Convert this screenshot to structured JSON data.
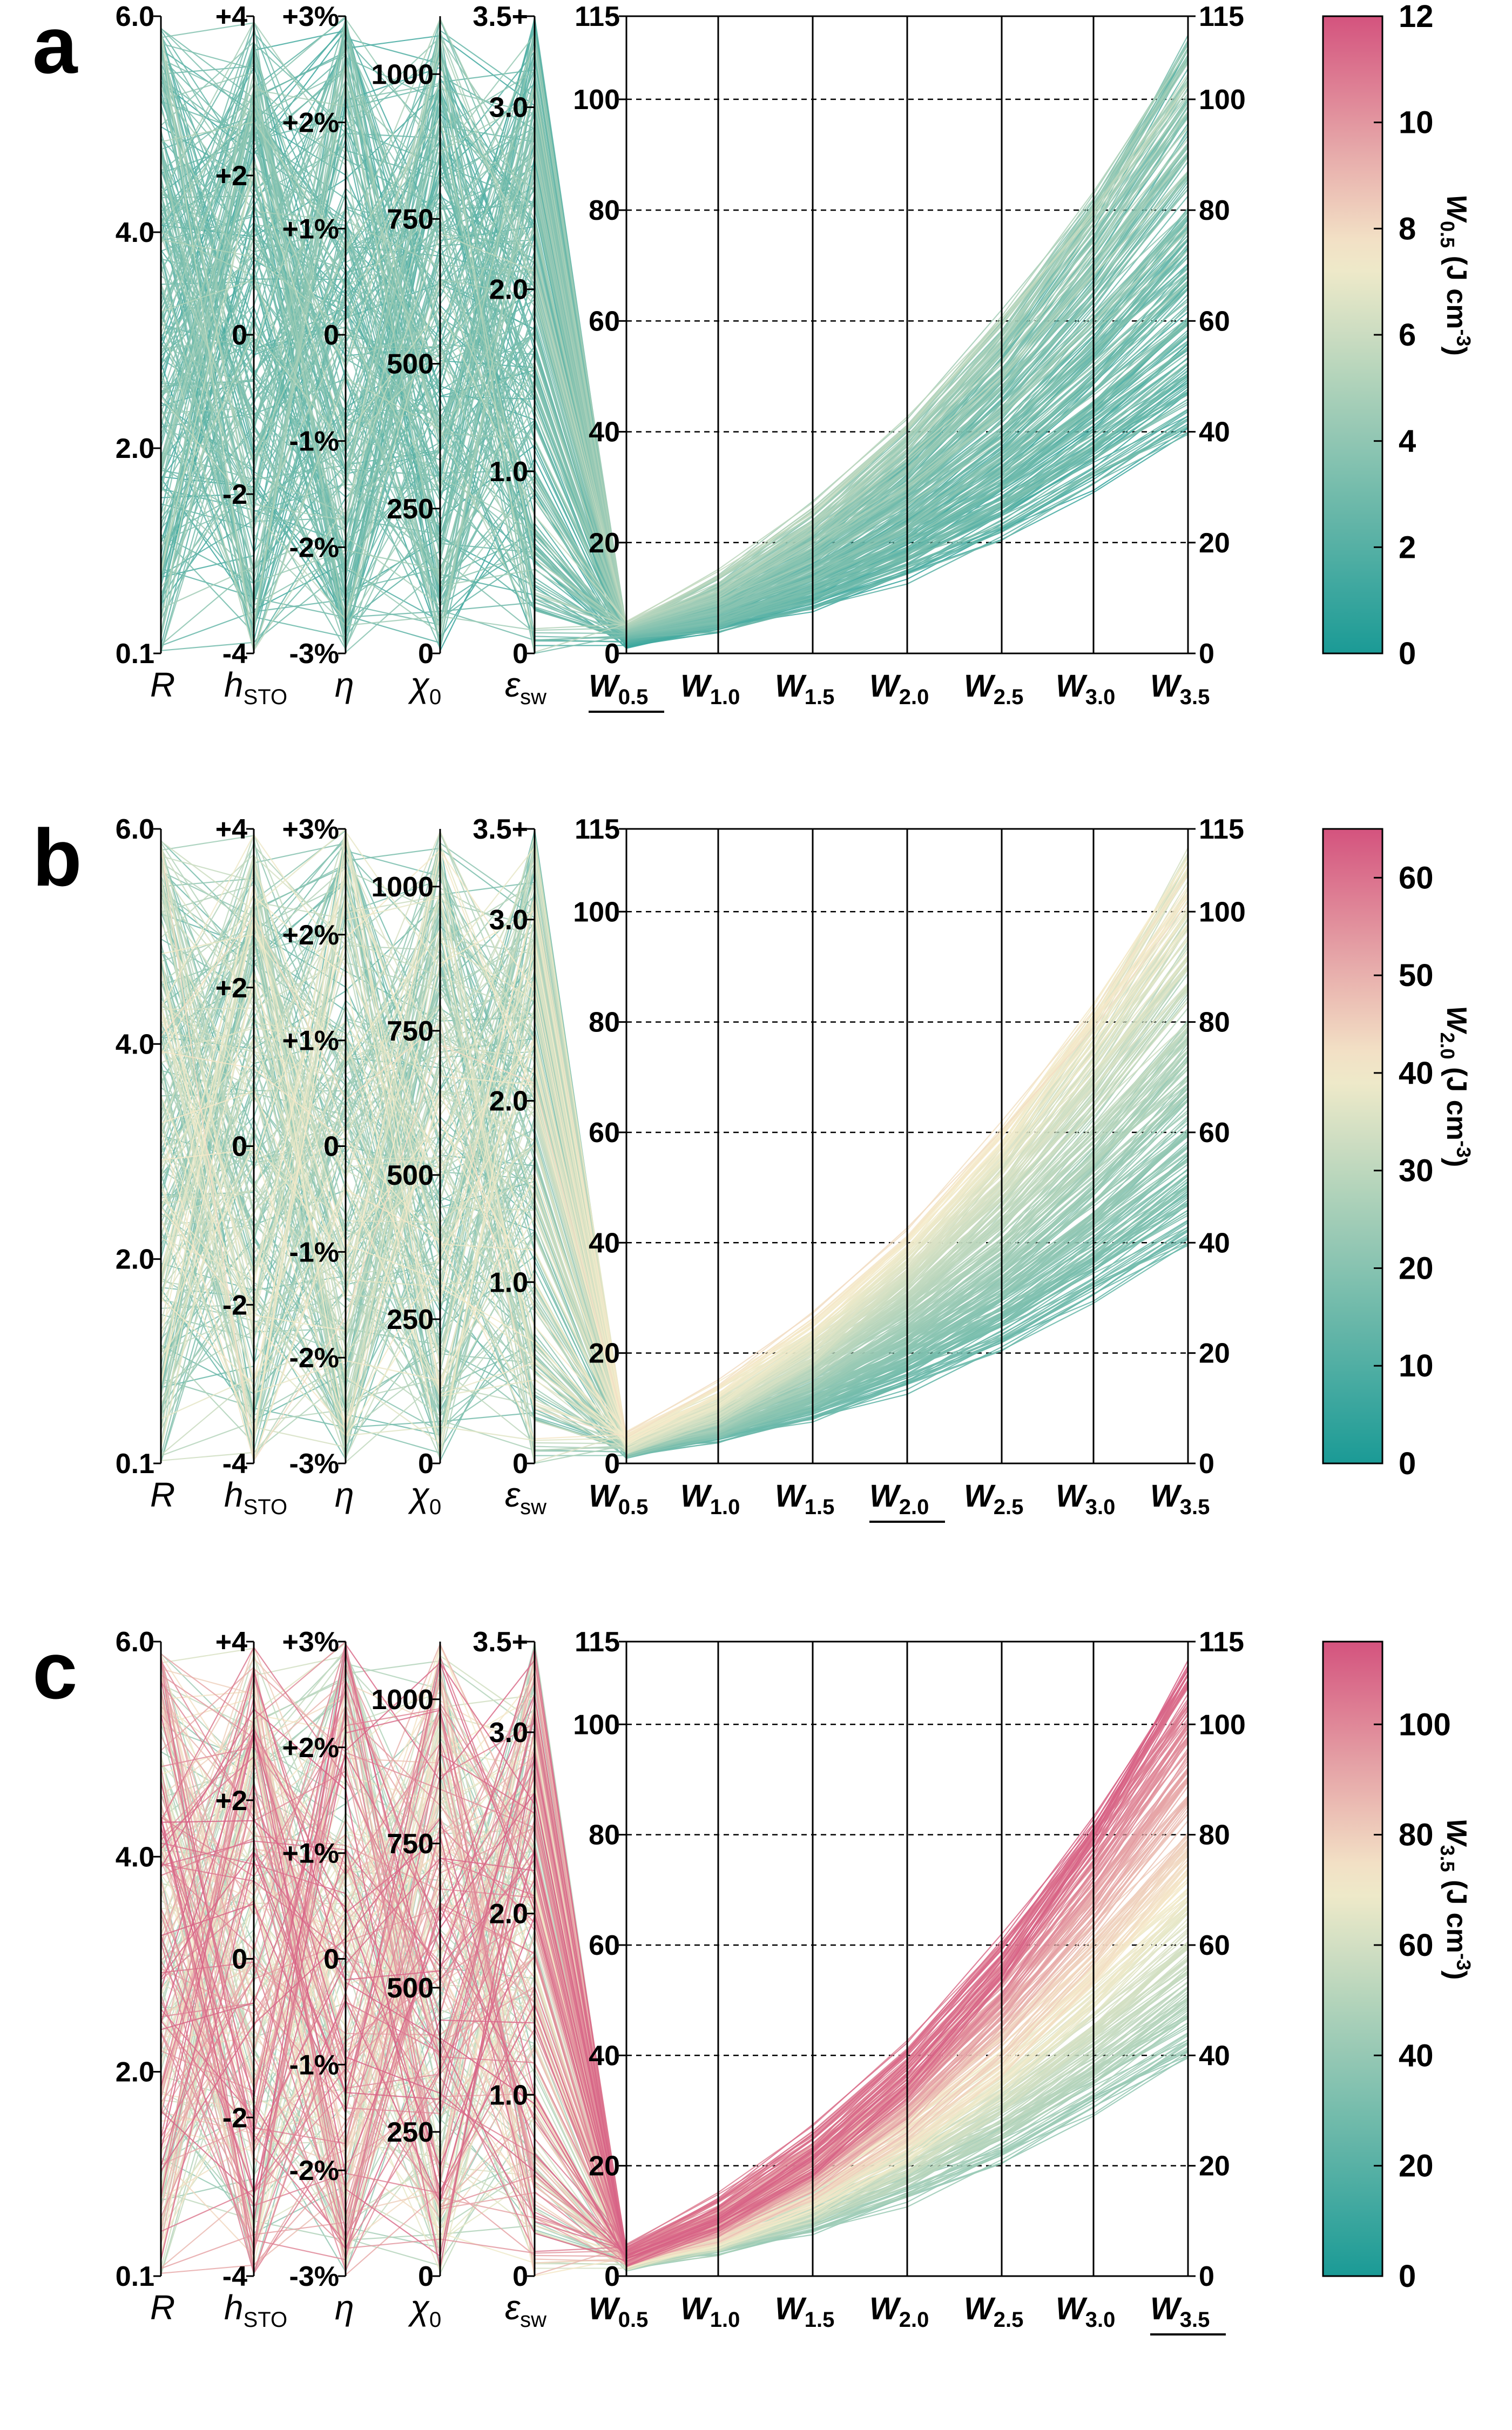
{
  "chart_data": [
    {
      "type": "parallel-coordinates",
      "panel": "a",
      "color_by": "W0.5",
      "colorbar": {
        "label_main": "W",
        "label_sub": "0.5",
        "label_unit": " (J cm",
        "label_sup": "-3",
        "label_close": ")",
        "ticks": [
          "0",
          "2",
          "4",
          "6",
          "8",
          "10",
          "12"
        ],
        "range": [
          0,
          12
        ]
      },
      "underlined_axis": "W0.5"
    },
    {
      "type": "parallel-coordinates",
      "panel": "b",
      "color_by": "W2.0",
      "colorbar": {
        "label_main": "W",
        "label_sub": "2.0",
        "label_unit": " (J cm",
        "label_sup": "-3",
        "label_close": ")",
        "ticks": [
          "0",
          "10",
          "20",
          "30",
          "40",
          "50",
          "60"
        ],
        "range": [
          0,
          65
        ]
      },
      "underlined_axis": "W2.0"
    },
    {
      "type": "parallel-coordinates",
      "panel": "c",
      "color_by": "W3.5",
      "colorbar": {
        "label_main": "W",
        "label_sub": "3.5",
        "label_unit": " (J cm",
        "label_sup": "-3",
        "label_close": ")",
        "ticks": [
          "0",
          "20",
          "40",
          "60",
          "80",
          "100"
        ],
        "range": [
          0,
          115
        ]
      },
      "underlined_axis": "W3.5"
    }
  ],
  "axes": {
    "R": {
      "label_main": "R",
      "label_sub": "",
      "ticks": [
        "0.1",
        "2.0",
        "4.0",
        "6.0"
      ],
      "range": [
        0.1,
        6.0
      ]
    },
    "hSTO": {
      "label_main": "h",
      "label_sub": "STO",
      "ticks": [
        "-4",
        "-2",
        "0",
        "+2",
        "+4"
      ],
      "range": [
        -4,
        4
      ]
    },
    "eta": {
      "label_main": "η",
      "label_sub": "",
      "ticks": [
        "-3%",
        "-2%",
        "-1%",
        "0",
        "+1%",
        "+2%",
        "+3%"
      ],
      "range": [
        -3,
        3
      ]
    },
    "chi0": {
      "label_main": "χ",
      "label_sub": "0",
      "ticks": [
        "0",
        "250",
        "500",
        "750",
        "1000"
      ],
      "range": [
        0,
        1100
      ]
    },
    "esw": {
      "label_main": "ε",
      "label_sub": "sw",
      "ticks": [
        "0",
        "1.0",
        "2.0",
        "3.0",
        "3.5+"
      ],
      "range": [
        0,
        3.5
      ]
    },
    "W": {
      "ticks": [
        "0",
        "20",
        "40",
        "60",
        "80",
        "100",
        "115"
      ],
      "range": [
        0,
        115
      ],
      "labels": [
        "W0.5",
        "W1.0",
        "W1.5",
        "W2.0",
        "W2.5",
        "W3.0",
        "W3.5"
      ],
      "subs": [
        "0.5",
        "1.0",
        "1.5",
        "2.0",
        "2.5",
        "3.0",
        "3.5"
      ]
    }
  },
  "colors": {
    "teal": "#1a9a96",
    "mid": "#f5eccb",
    "pink": "#d4537e",
    "ink": "#000000"
  }
}
